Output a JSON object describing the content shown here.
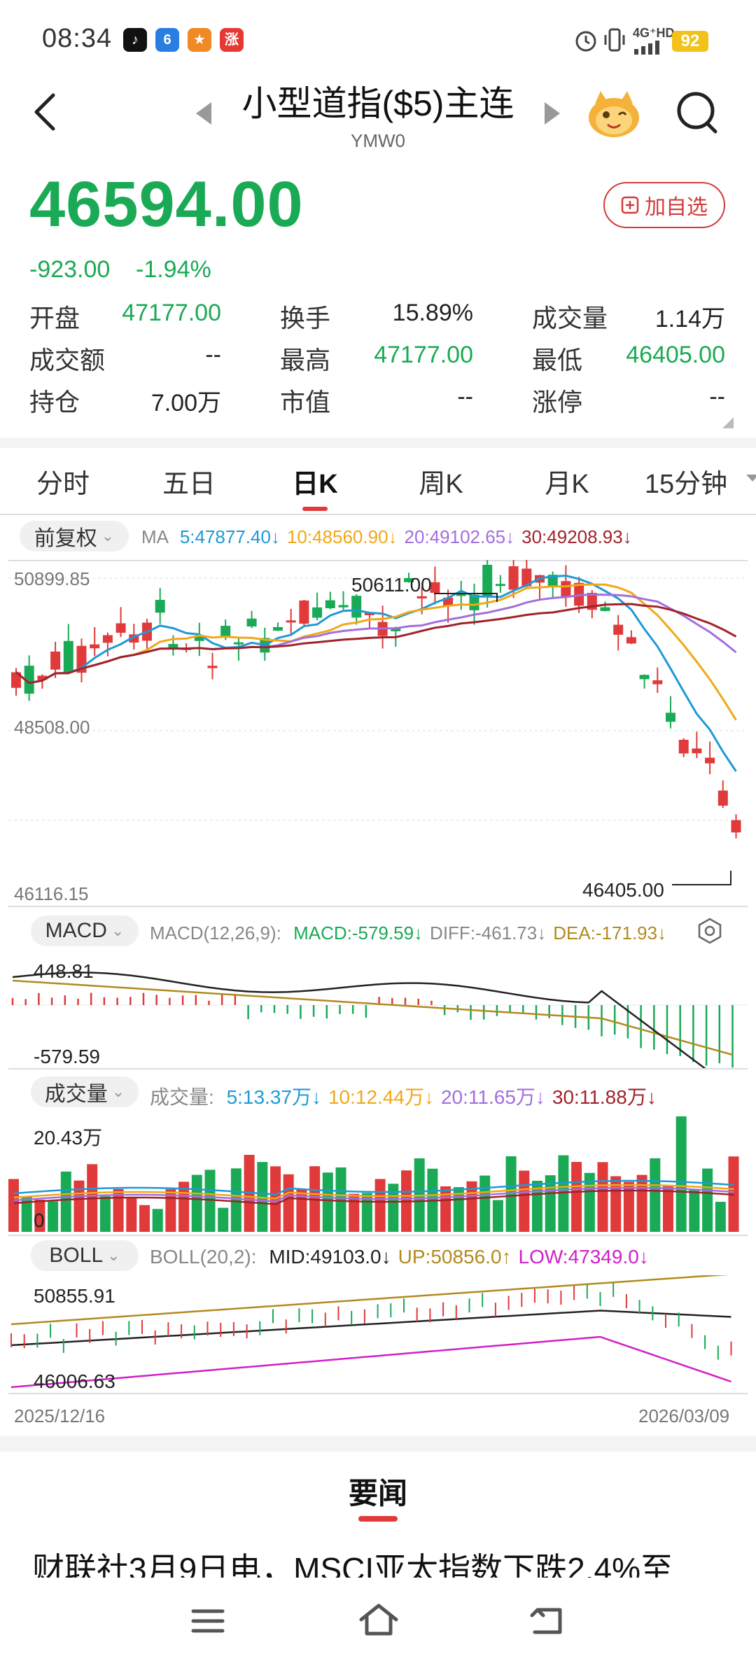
{
  "status_bar": {
    "time": "08:34",
    "network": "4G⁺HD",
    "battery": "92"
  },
  "header": {
    "title": "小型道指($5)主连",
    "code": "YMW0",
    "add_watchlist": "加自选"
  },
  "quote": {
    "price": "46594.00",
    "change": "-923.00",
    "change_pct": "-1.94%",
    "stats": [
      {
        "label": "开盘",
        "value": "47177.00",
        "green": true
      },
      {
        "label": "换手",
        "value": "15.89%",
        "green": false
      },
      {
        "label": "成交量",
        "value": "1.14万",
        "green": false
      },
      {
        "label": "成交额",
        "value": "--",
        "green": false
      },
      {
        "label": "最高",
        "value": "47177.00",
        "green": true
      },
      {
        "label": "最低",
        "value": "46405.00",
        "green": true
      },
      {
        "label": "持仓",
        "value": "7.00万",
        "green": false
      },
      {
        "label": "市值",
        "value": "--",
        "green": false
      },
      {
        "label": "涨停",
        "value": "--",
        "green": false
      }
    ]
  },
  "tabs": [
    "分时",
    "五日",
    "日K",
    "周K",
    "月K",
    "15分钟"
  ],
  "active_tab": "日K",
  "kline": {
    "adjust": "前复权",
    "ma_label": "MA",
    "ma": [
      {
        "label": "5:47877.40↓",
        "color": "#1e9ad6"
      },
      {
        "label": "10:48560.90↓",
        "color": "#f0a818"
      },
      {
        "label": "20:49102.65↓",
        "color": "#a36ee0"
      },
      {
        "label": "30:49208.93↓",
        "color": "#a0232a"
      }
    ],
    "y_top": "50899.85",
    "y_mid": "48508.00",
    "y_bottom": "46116.15",
    "high_label": "50611.00",
    "low_label": "46405.00"
  },
  "macd": {
    "name": "MACD",
    "params": "MACD(12,26,9):",
    "values": [
      {
        "label": "MACD:-579.59↓",
        "color": "#1aaa55"
      },
      {
        "label": "DIFF:-461.73↓",
        "color": "#888888"
      },
      {
        "label": "DEA:-171.93↓",
        "color": "#b28a1e"
      }
    ],
    "y_top": "448.81",
    "y_bottom": "-579.59"
  },
  "volume": {
    "name": "成交量",
    "prefix": "成交量:",
    "values": [
      {
        "label": "5:13.37万↓",
        "color": "#1e9ad6"
      },
      {
        "label": "10:12.44万↓",
        "color": "#f0a818"
      },
      {
        "label": "20:11.65万↓",
        "color": "#a36ee0"
      },
      {
        "label": "30:11.88万↓",
        "color": "#a0232a"
      }
    ],
    "y_top": "20.43万",
    "y_bottom": "0"
  },
  "boll": {
    "name": "BOLL",
    "params": "BOLL(20,2):",
    "values": [
      {
        "label": "MID:49103.0↓",
        "color": "#222222"
      },
      {
        "label": "UP:50856.0↑",
        "color": "#b28a1e"
      },
      {
        "label": "LOW:47349.0↓",
        "color": "#d020c8"
      }
    ],
    "y_top": "50855.91",
    "y_bottom": "46006.63"
  },
  "date_start": "2025/12/16",
  "date_end": "2026/03/09",
  "news": {
    "section": "要闻",
    "headline": "财联社3月9日电，MSCI亚太指数下跌2.4%至"
  }
}
